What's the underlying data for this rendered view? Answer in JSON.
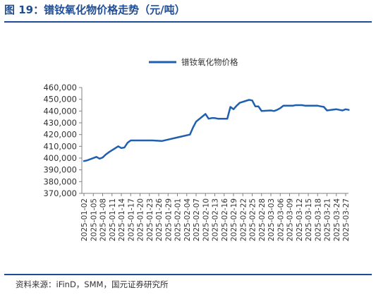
{
  "figure": {
    "title": "图 19：镨钕氧化物价格走势（元/吨）",
    "source": "资料来源：iFinD，SMM，国元证券研究所"
  },
  "colors": {
    "accent": "#1f4e96",
    "line": "#1f5fb0",
    "axis": "#808080"
  },
  "chart_data": {
    "type": "line",
    "title": "",
    "xlabel": "",
    "ylabel": "",
    "ylim": [
      370000,
      460000
    ],
    "ytick_step": 10000,
    "yticks": [
      "370,000",
      "380,000",
      "390,000",
      "400,000",
      "410,000",
      "420,000",
      "430,000",
      "440,000",
      "450,000",
      "460,000"
    ],
    "grid": false,
    "legend_position": "top-center",
    "categories": [
      "2025-01-02",
      "2025-01-03",
      "2025-01-06",
      "2025-01-07",
      "2025-01-08",
      "2025-01-09",
      "2025-01-10",
      "2025-01-13",
      "2025-01-14",
      "2025-01-15",
      "2025-01-16",
      "2025-01-17",
      "2025-01-20",
      "2025-01-21",
      "2025-01-22",
      "2025-01-23",
      "2025-01-24",
      "2025-01-27",
      "2025-02-05",
      "2025-02-06",
      "2025-02-07",
      "2025-02-10",
      "2025-02-11",
      "2025-02-12",
      "2025-02-13",
      "2025-02-14",
      "2025-02-17",
      "2025-02-18",
      "2025-02-19",
      "2025-02-20",
      "2025-02-21",
      "2025-02-24",
      "2025-02-25",
      "2025-02-26",
      "2025-02-27",
      "2025-02-28",
      "2025-03-03",
      "2025-03-04",
      "2025-03-05",
      "2025-03-06",
      "2025-03-07",
      "2025-03-10",
      "2025-03-11",
      "2025-03-12",
      "2025-03-13",
      "2025-03-14",
      "2025-03-17",
      "2025-03-18",
      "2025-03-19",
      "2025-03-20",
      "2025-03-21",
      "2025-03-24",
      "2025-03-25",
      "2025-03-26",
      "2025-03-27",
      "2025-03-28"
    ],
    "labeled_categories": [
      "2025-01-02",
      "2025-01-05",
      "2025-01-08",
      "2025-01-11",
      "2025-01-14",
      "2025-01-17",
      "2025-01-20",
      "2025-01-23",
      "2025-01-26",
      "2025-01-29",
      "2025-02-01",
      "2025-02-04",
      "2025-02-07",
      "2025-02-10",
      "2025-02-13",
      "2025-02-16",
      "2025-02-19",
      "2025-02-22",
      "2025-02-25",
      "2025-02-28",
      "2025-03-03",
      "2025-03-06",
      "2025-03-09",
      "2025-03-12",
      "2025-03-15",
      "2025-03-18",
      "2025-03-21",
      "2025-03-24",
      "2025-03-27"
    ],
    "series": [
      {
        "name": "镨钕氧化物价格",
        "values": [
          397500,
          398000,
          401000,
          399500,
          400500,
          403000,
          405000,
          410000,
          408500,
          409000,
          413000,
          415000,
          415000,
          415000,
          415000,
          415000,
          415000,
          414500,
          420000,
          426000,
          431000,
          437500,
          433500,
          434000,
          434000,
          433500,
          433500,
          443500,
          441500,
          444500,
          447000,
          449500,
          449000,
          444000,
          444000,
          440000,
          440500,
          440000,
          441000,
          442500,
          444500,
          444500,
          445000,
          445000,
          445000,
          444500,
          444500,
          444500,
          444000,
          443500,
          440500,
          441500,
          441000,
          440500,
          441500,
          441000
        ]
      }
    ]
  }
}
